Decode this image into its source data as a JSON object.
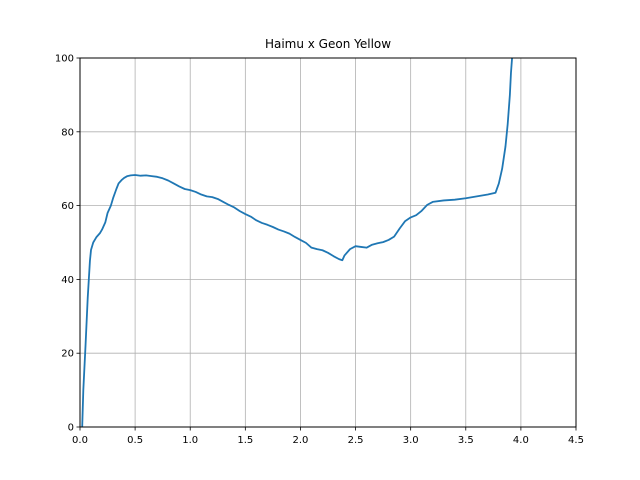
{
  "chart_data": {
    "type": "line",
    "title": "Haimu x Geon Yellow",
    "xlabel": "",
    "ylabel": "",
    "xlim": [
      0.0,
      4.5
    ],
    "ylim": [
      0,
      100
    ],
    "xticks": [
      "0.0",
      "0.5",
      "1.0",
      "1.5",
      "2.0",
      "2.5",
      "3.0",
      "3.5",
      "4.0",
      "4.5"
    ],
    "yticks": [
      "0",
      "20",
      "40",
      "60",
      "80",
      "100"
    ],
    "grid": true,
    "line_color": "#1f77b4",
    "series": [
      {
        "x": [
          0.02,
          0.03,
          0.05,
          0.07,
          0.09,
          0.1,
          0.12,
          0.15,
          0.18,
          0.2,
          0.23,
          0.25,
          0.28,
          0.3,
          0.33,
          0.35,
          0.38,
          0.4,
          0.43,
          0.46,
          0.5,
          0.55,
          0.6,
          0.65,
          0.7,
          0.75,
          0.8,
          0.85,
          0.9,
          0.95,
          1.0,
          1.05,
          1.1,
          1.15,
          1.2,
          1.25,
          1.3,
          1.35,
          1.4,
          1.45,
          1.5,
          1.55,
          1.6,
          1.65,
          1.7,
          1.75,
          1.8,
          1.85,
          1.9,
          1.95,
          2.0,
          2.05,
          2.1,
          2.15,
          2.2,
          2.25,
          2.3,
          2.35,
          2.38,
          2.4,
          2.45,
          2.5,
          2.55,
          2.6,
          2.65,
          2.7,
          2.75,
          2.8,
          2.85,
          2.9,
          2.95,
          3.0,
          3.05,
          3.1,
          3.15,
          3.2,
          3.3,
          3.4,
          3.5,
          3.6,
          3.7,
          3.77,
          3.8,
          3.83,
          3.86,
          3.88,
          3.9,
          3.91,
          3.92
        ],
        "y": [
          0,
          10,
          22,
          35,
          45,
          48,
          50,
          51.5,
          52.5,
          53.5,
          55.5,
          58,
          60,
          62,
          64.5,
          66,
          67,
          67.5,
          68,
          68.2,
          68.3,
          68.1,
          68.2,
          68.0,
          67.8,
          67.4,
          66.8,
          66.0,
          65.2,
          64.5,
          64.2,
          63.7,
          63.0,
          62.5,
          62.3,
          61.8,
          61.0,
          60.2,
          59.5,
          58.5,
          57.7,
          57.0,
          56.0,
          55.3,
          54.8,
          54.2,
          53.5,
          53.0,
          52.4,
          51.5,
          50.7,
          49.9,
          48.6,
          48.2,
          47.9,
          47.2,
          46.3,
          45.5,
          45.2,
          46.5,
          48.2,
          49.0,
          48.8,
          48.6,
          49.4,
          49.8,
          50.1,
          50.7,
          51.6,
          53.8,
          55.8,
          56.8,
          57.4,
          58.6,
          60.2,
          61.0,
          61.4,
          61.6,
          62.0,
          62.5,
          63.0,
          63.5,
          66,
          70,
          76,
          82,
          90,
          96,
          100
        ]
      }
    ]
  }
}
